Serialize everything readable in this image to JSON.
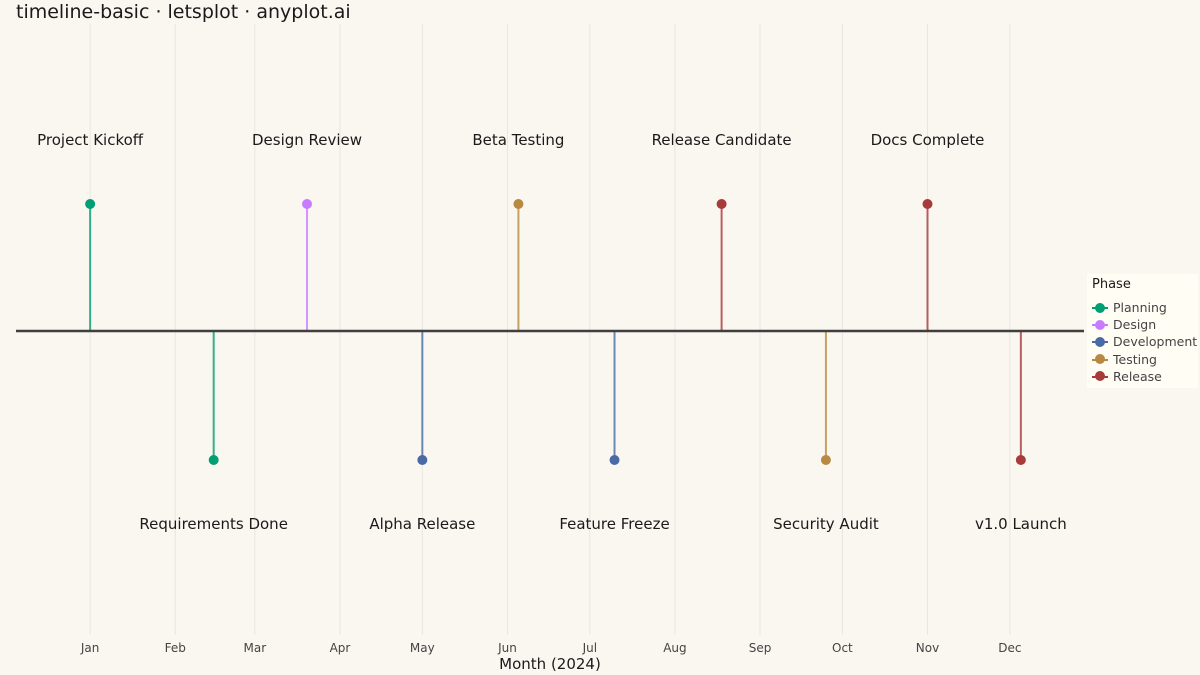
{
  "title": "timeline-basic · letsplot · anyplot.ai",
  "chart_data": {
    "type": "timeline",
    "xlabel": "Month (2024)",
    "ylabel": "",
    "grid": true,
    "legend": {
      "title": "Phase",
      "position": "right",
      "entries": [
        "Planning",
        "Design",
        "Development",
        "Testing",
        "Release"
      ]
    },
    "colors": {
      "Planning": "#009E73",
      "Design": "#C77CFF",
      "Development": "#4A6AA5",
      "Testing": "#B88942",
      "Release": "#A83A3A"
    },
    "x_ticks": [
      {
        "label": "Jan",
        "date": "2024-01-01"
      },
      {
        "label": "Feb",
        "date": "2024-02-01"
      },
      {
        "label": "Mar",
        "date": "2024-03-01"
      },
      {
        "label": "Apr",
        "date": "2024-04-01"
      },
      {
        "label": "May",
        "date": "2024-05-01"
      },
      {
        "label": "Jun",
        "date": "2024-06-01"
      },
      {
        "label": "Jul",
        "date": "2024-07-01"
      },
      {
        "label": "Aug",
        "date": "2024-08-01"
      },
      {
        "label": "Sep",
        "date": "2024-09-01"
      },
      {
        "label": "Oct",
        "date": "2024-10-01"
      },
      {
        "label": "Nov",
        "date": "2024-11-01"
      },
      {
        "label": "Dec",
        "date": "2024-12-01"
      }
    ],
    "xlim": [
      "2023-12-05",
      "2024-12-28"
    ],
    "events": [
      {
        "label": "Project Kickoff",
        "date": "2024-01-01",
        "phase": "Planning",
        "side": "above"
      },
      {
        "label": "Requirements Done",
        "date": "2024-02-15",
        "phase": "Planning",
        "side": "below"
      },
      {
        "label": "Design Review",
        "date": "2024-03-20",
        "phase": "Design",
        "side": "above"
      },
      {
        "label": "Alpha Release",
        "date": "2024-05-01",
        "phase": "Development",
        "side": "below"
      },
      {
        "label": "Beta Testing",
        "date": "2024-06-05",
        "phase": "Testing",
        "side": "above"
      },
      {
        "label": "Feature Freeze",
        "date": "2024-07-10",
        "phase": "Development",
        "side": "below"
      },
      {
        "label": "Release Candidate",
        "date": "2024-08-18",
        "phase": "Release",
        "side": "above"
      },
      {
        "label": "Security Audit",
        "date": "2024-09-25",
        "phase": "Testing",
        "side": "below"
      },
      {
        "label": "Docs Complete",
        "date": "2024-11-01",
        "phase": "Release",
        "side": "above"
      },
      {
        "label": "v1.0 Launch",
        "date": "2024-12-05",
        "phase": "Release",
        "side": "below"
      }
    ]
  }
}
